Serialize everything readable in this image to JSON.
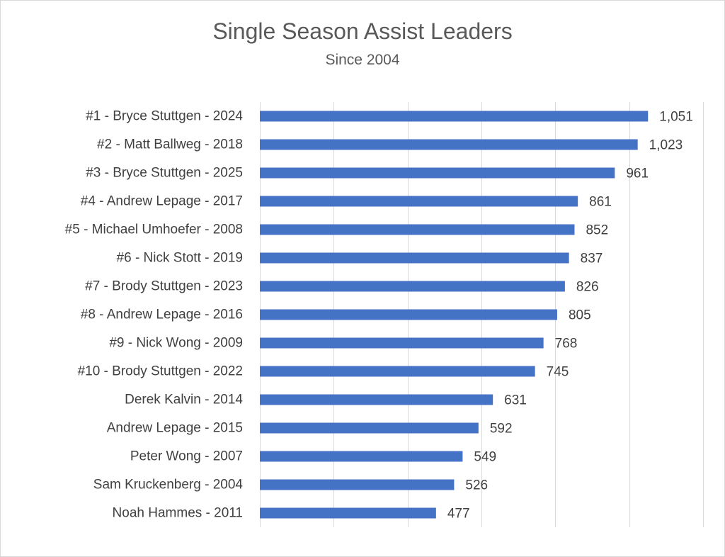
{
  "chart_data": {
    "type": "bar",
    "orientation": "horizontal",
    "title": "Single Season Assist Leaders",
    "subtitle": "Since 2004",
    "xlim": [
      0,
      1200
    ],
    "grid": true,
    "bar_color": "#4472c4",
    "categories": [
      "#1 - Bryce Stuttgen - 2024",
      "#2 - Matt Ballweg - 2018",
      "#3 - Bryce Stuttgen - 2025",
      "#4 - Andrew Lepage - 2017",
      "#5 - Michael Umhoefer - 2008",
      "#6 - Nick Stott - 2019",
      "#7 - Brody Stuttgen - 2023",
      "#8 - Andrew Lepage - 2016",
      "#9 - Nick Wong - 2009",
      "#10 - Brody Stuttgen - 2022",
      "Derek Kalvin - 2014",
      "Andrew Lepage - 2015",
      "Peter Wong - 2007",
      "Sam Kruckenberg - 2004",
      "Noah Hammes - 2011"
    ],
    "values": [
      1051,
      1023,
      961,
      861,
      852,
      837,
      826,
      805,
      768,
      745,
      631,
      592,
      549,
      526,
      477
    ],
    "value_labels": [
      "1,051",
      "1,023",
      "961",
      "861",
      "852",
      "837",
      "826",
      "805",
      "768",
      "745",
      "631",
      "592",
      "549",
      "526",
      "477"
    ]
  }
}
